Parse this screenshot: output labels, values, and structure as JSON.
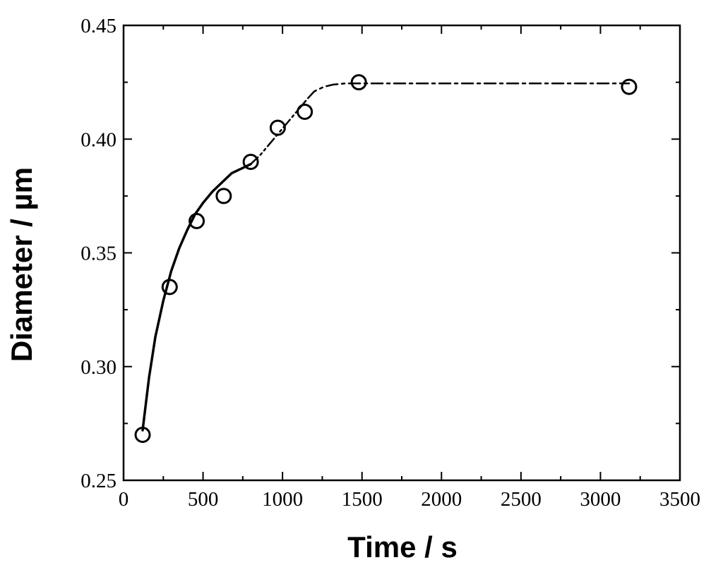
{
  "chart_data": {
    "type": "scatter",
    "title": "",
    "xlabel": "Time / s",
    "ylabel": "Diameter / µm",
    "xlim": [
      0,
      3500
    ],
    "ylim": [
      0.25,
      0.45
    ],
    "xticks": [
      0,
      500,
      1000,
      1500,
      2000,
      2500,
      3000,
      3500
    ],
    "yticks": [
      0.25,
      0.3,
      0.35,
      0.4,
      0.45
    ],
    "xtick_labels": [
      "0",
      "500",
      "1000",
      "1500",
      "2000",
      "2500",
      "3000",
      "3500"
    ],
    "ytick_labels": [
      "0.25",
      "0.30",
      "0.35",
      "0.40",
      "0.45"
    ],
    "grid": false,
    "legend": "none",
    "series": [
      {
        "marker": "open-circle",
        "x": [
          120,
          290,
          460,
          630,
          800,
          970,
          1140,
          1480,
          3180
        ],
        "y": [
          0.27,
          0.335,
          0.364,
          0.375,
          0.39,
          0.405,
          0.412,
          0.425,
          0.423
        ]
      }
    ],
    "fit_lines": [
      {
        "style": "solid",
        "x": [
          120,
          160,
          200,
          250,
          300,
          350,
          400,
          450,
          500,
          560,
          620,
          680,
          740,
          800
        ],
        "y": [
          0.272,
          0.295,
          0.313,
          0.329,
          0.342,
          0.352,
          0.36,
          0.367,
          0.372,
          0.377,
          0.381,
          0.385,
          0.387,
          0.389
        ]
      },
      {
        "style": "dash-dot-dot",
        "x": [
          800,
          860,
          920,
          980,
          1040,
          1100,
          1160
        ],
        "y": [
          0.389,
          0.393,
          0.398,
          0.403,
          0.408,
          0.413,
          0.418
        ]
      },
      {
        "style": "dash-dot",
        "x": [
          1160,
          1200,
          1260,
          1320,
          1400,
          1480,
          1600,
          2000,
          2500,
          3180
        ],
        "y": [
          0.418,
          0.421,
          0.423,
          0.424,
          0.4245,
          0.4245,
          0.4245,
          0.4245,
          0.4245,
          0.4245
        ]
      }
    ]
  }
}
